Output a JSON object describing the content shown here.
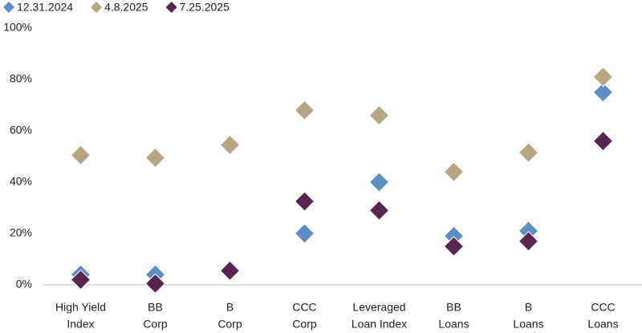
{
  "chart_data": {
    "type": "dot",
    "categories": [
      [
        "High Yield",
        "Index"
      ],
      [
        "BB",
        "Corp"
      ],
      [
        "B",
        "Corp"
      ],
      [
        "CCC",
        "Corp"
      ],
      [
        "Leveraged",
        "Loan Index"
      ],
      [
        "BB",
        "Loans"
      ],
      [
        "B",
        "Loans"
      ],
      [
        "CCC",
        "Loans"
      ]
    ],
    "series": [
      {
        "name": "12.31.2024",
        "color": "#5b8ec4",
        "values": [
          4,
          4,
          6,
          20,
          40,
          19,
          21,
          75
        ]
      },
      {
        "name": "4.8.2025",
        "color": "#b5a580",
        "values": [
          50.5,
          49.5,
          54.5,
          68,
          66,
          44,
          51.5,
          81
        ]
      },
      {
        "name": "7.25.2025",
        "color": "#5a2450",
        "values": [
          2,
          0.5,
          5.5,
          32.5,
          29,
          15,
          17,
          56
        ]
      }
    ],
    "ylim": [
      0,
      100
    ],
    "yticks": [
      {
        "value": 0,
        "label": "0%"
      },
      {
        "value": 20,
        "label": "20%"
      },
      {
        "value": 40,
        "label": "40%"
      },
      {
        "value": 60,
        "label": "60%"
      },
      {
        "value": 80,
        "label": "80%"
      },
      {
        "value": 100,
        "label": "100%"
      }
    ],
    "grid": false,
    "legend": "top-left"
  }
}
